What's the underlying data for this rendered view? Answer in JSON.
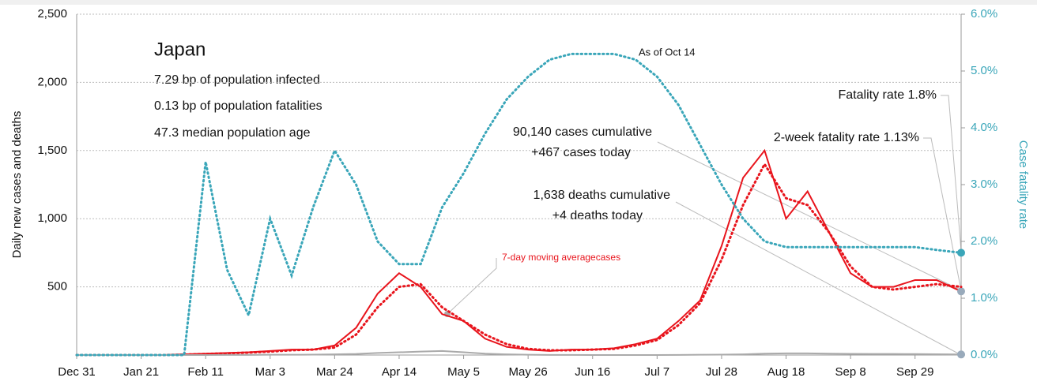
{
  "chart_data": {
    "type": "line",
    "annotations": {
      "country": "Japan",
      "infected": "7.29 bp of population infected",
      "fatalities": "0.13 bp of population fatalities",
      "age": "47.3 median population age",
      "as_of": "As of Oct 14",
      "fatality_rate": "Fatality rate 1.8%",
      "two_week_rate": "2-week fatality rate 1.13%",
      "cases_cum": "90,140 cases cumulative",
      "cases_today": "+467 cases today",
      "deaths_cum": "1,638 deaths cumulative",
      "deaths_today": "+4 deaths today",
      "ma_label": "7-day moving averagecases"
    },
    "ylabel": "Daily new cases and deaths",
    "y2label": "Case fatality rate",
    "x": [
      0,
      7,
      14,
      21,
      28,
      35,
      42,
      49,
      56,
      63,
      70,
      77,
      84,
      91,
      98,
      105,
      112,
      119,
      126,
      133,
      140,
      147,
      154,
      161,
      168,
      175,
      182,
      189,
      196,
      203,
      210,
      217,
      224,
      231,
      238,
      245,
      252,
      259,
      266,
      273,
      280,
      288
    ],
    "xlim": [
      0,
      288
    ],
    "xticks": [
      {
        "value": 0,
        "label": "Dec 31"
      },
      {
        "value": 21,
        "label": "Jan 21"
      },
      {
        "value": 42,
        "label": "Feb 11"
      },
      {
        "value": 63,
        "label": "Mar 3"
      },
      {
        "value": 84,
        "label": "Mar 24"
      },
      {
        "value": 105,
        "label": "Apr 14"
      },
      {
        "value": 126,
        "label": "May 5"
      },
      {
        "value": 147,
        "label": "May 26"
      },
      {
        "value": 168,
        "label": "Jun 16"
      },
      {
        "value": 189,
        "label": "Jul 7"
      },
      {
        "value": 210,
        "label": "Jul 28"
      },
      {
        "value": 231,
        "label": "Aug 18"
      },
      {
        "value": 252,
        "label": "Sep 8"
      },
      {
        "value": 273,
        "label": "Sep 29"
      }
    ],
    "ylim": [
      0,
      2500
    ],
    "yticks": [
      500,
      {
        "value": 1000,
        "label": "1,000"
      },
      {
        "value": 1500,
        "label": "1,500"
      },
      {
        "value": 2000,
        "label": "2,000"
      },
      {
        "value": 2500,
        "label": "2,500"
      }
    ],
    "y2lim": [
      0,
      6
    ],
    "y2ticks": [
      {
        "value": 0,
        "label": "0.0%"
      },
      {
        "value": 1,
        "label": "1.0%"
      },
      {
        "value": 2,
        "label": "2.0%"
      },
      {
        "value": 3,
        "label": "3.0%"
      },
      {
        "value": 4,
        "label": "4.0%"
      },
      {
        "value": 5,
        "label": "5.0%"
      },
      {
        "value": 6,
        "label": "6.0%"
      }
    ],
    "grid": true,
    "series": [
      {
        "name": "Cases",
        "color": "#e8141c",
        "style": "solid",
        "values": [
          0,
          0,
          0,
          0,
          0,
          5,
          10,
          15,
          20,
          30,
          40,
          40,
          70,
          200,
          450,
          600,
          500,
          300,
          250,
          120,
          60,
          40,
          30,
          40,
          40,
          50,
          80,
          120,
          250,
          400,
          800,
          1300,
          1500,
          1000,
          1200,
          900,
          600,
          500,
          500,
          550,
          550,
          467
        ]
      },
      {
        "name": "7-day moving average",
        "color": "#e8141c",
        "style": "dotted",
        "values": [
          0,
          0,
          0,
          0,
          0,
          3,
          8,
          12,
          18,
          25,
          35,
          40,
          55,
          150,
          350,
          500,
          520,
          350,
          250,
          150,
          80,
          45,
          35,
          35,
          40,
          45,
          70,
          110,
          220,
          380,
          700,
          1100,
          1400,
          1150,
          1100,
          900,
          650,
          500,
          480,
          500,
          520,
          500
        ]
      },
      {
        "name": "Deaths",
        "color": "#aaaaaa",
        "style": "solid",
        "values": [
          0,
          0,
          0,
          0,
          0,
          0,
          0,
          1,
          1,
          2,
          2,
          3,
          5,
          8,
          15,
          20,
          25,
          30,
          20,
          10,
          5,
          2,
          1,
          1,
          0,
          0,
          0,
          0,
          1,
          2,
          3,
          5,
          10,
          12,
          12,
          10,
          9,
          8,
          8,
          7,
          6,
          4
        ]
      },
      {
        "name": "Case fatality rate",
        "color": "#3aa6b9",
        "style": "dotted",
        "axis": "y2",
        "values": [
          0,
          0,
          0,
          0,
          0,
          0,
          3.4,
          1.5,
          0.7,
          2.4,
          1.4,
          2.6,
          3.6,
          3.0,
          2.0,
          1.6,
          1.6,
          2.6,
          3.2,
          3.9,
          4.5,
          4.9,
          5.2,
          5.3,
          5.3,
          5.3,
          5.2,
          4.9,
          4.4,
          3.7,
          3.0,
          2.4,
          2.0,
          1.9,
          1.9,
          1.9,
          1.9,
          1.9,
          1.9,
          1.9,
          1.85,
          1.8
        ]
      }
    ]
  }
}
